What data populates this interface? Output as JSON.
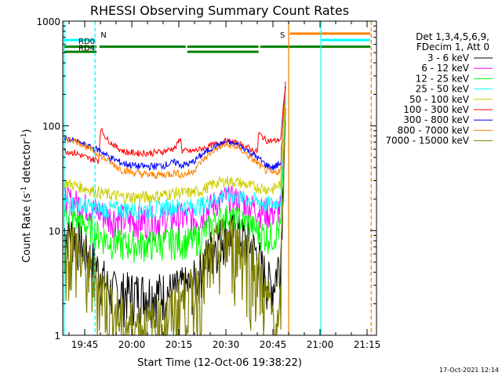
{
  "chart_data": {
    "type": "line",
    "title": "RHESSI Observing Summary Count Rates",
    "xlabel": "Start Time (12-Oct-06 19:38:22)",
    "ylabel_main": "Count Rate (s",
    "ylabel_sup1": "-1",
    "ylabel_mid": " detector",
    "ylabel_sup2": "-1",
    "ylabel_end": ")",
    "y_scale": "log",
    "ylim": [
      1,
      1000
    ],
    "y_ticks": [
      {
        "value": 1,
        "label": "1"
      },
      {
        "value": 10,
        "label": "10"
      },
      {
        "value": 100,
        "label": "100"
      },
      {
        "value": 1000,
        "label": "1000"
      }
    ],
    "x_range_min": [
      1178,
      1278
    ],
    "x_ticks": [
      {
        "value": 1185,
        "label": "19:45"
      },
      {
        "value": 1200,
        "label": "20:00"
      },
      {
        "value": 1215,
        "label": "20:15"
      },
      {
        "value": 1230,
        "label": "20:30"
      },
      {
        "value": 1245,
        "label": "20:45"
      },
      {
        "value": 1260,
        "label": "21:00"
      },
      {
        "value": 1275,
        "label": "21:15"
      }
    ],
    "legend_title": [
      "Det 1,3,4,5,6,9,",
      "FDecim 1, Att 0"
    ],
    "legend_position": "right",
    "series": [
      {
        "name": "3 - 6 keV",
        "color": "#000000",
        "points": [
          [
            1178.4,
            10
          ],
          [
            1182,
            9
          ],
          [
            1186,
            6
          ],
          [
            1190,
            4
          ],
          [
            1193,
            2.7
          ],
          [
            1197,
            2.6
          ],
          [
            1202,
            2.6
          ],
          [
            1206,
            2.6
          ],
          [
            1210,
            2.6
          ],
          [
            1214,
            2.7
          ],
          [
            1216,
            2.9
          ],
          [
            1219,
            3
          ],
          [
            1222,
            4.5
          ],
          [
            1226,
            7.5
          ],
          [
            1230,
            10
          ],
          [
            1234,
            9.5
          ],
          [
            1237,
            8
          ],
          [
            1240,
            6
          ],
          [
            1243,
            3.5
          ],
          [
            1245,
            3
          ],
          [
            1247.5,
            6
          ],
          [
            1248.3,
            30
          ],
          [
            1249,
            150
          ]
        ]
      },
      {
        "name": "6 - 12 keV",
        "color": "#ff00ff",
        "points": [
          [
            1178.4,
            21
          ],
          [
            1182,
            19
          ],
          [
            1186,
            17
          ],
          [
            1190,
            15
          ],
          [
            1193,
            13.5
          ],
          [
            1197,
            13
          ],
          [
            1202,
            12.5
          ],
          [
            1206,
            12.5
          ],
          [
            1210,
            13
          ],
          [
            1214,
            13.5
          ],
          [
            1216,
            13.5
          ],
          [
            1219,
            13
          ],
          [
            1222,
            14
          ],
          [
            1226,
            18
          ],
          [
            1230,
            21
          ],
          [
            1234,
            20
          ],
          [
            1237,
            18
          ],
          [
            1240,
            16
          ],
          [
            1243,
            15
          ],
          [
            1245,
            15
          ],
          [
            1247.5,
            17
          ],
          [
            1248.3,
            50
          ],
          [
            1249,
            200
          ]
        ]
      },
      {
        "name": "12 - 25 keV",
        "color": "#00ff00",
        "points": [
          [
            1178.4,
            15
          ],
          [
            1182,
            13
          ],
          [
            1186,
            11
          ],
          [
            1190,
            9
          ],
          [
            1193,
            8
          ],
          [
            1197,
            7.5
          ],
          [
            1202,
            7.5
          ],
          [
            1206,
            7.5
          ],
          [
            1210,
            7.8
          ],
          [
            1214,
            8
          ],
          [
            1216,
            8
          ],
          [
            1219,
            8
          ],
          [
            1222,
            9
          ],
          [
            1226,
            12
          ],
          [
            1230,
            14
          ],
          [
            1234,
            13
          ],
          [
            1237,
            12
          ],
          [
            1240,
            10
          ],
          [
            1243,
            9
          ],
          [
            1245,
            9
          ],
          [
            1247.5,
            11
          ],
          [
            1248.3,
            40
          ],
          [
            1249,
            170
          ]
        ]
      },
      {
        "name": "25 - 50 keV",
        "color": "#00ffff",
        "points": [
          [
            1178.4,
            19
          ],
          [
            1182,
            18
          ],
          [
            1186,
            17
          ],
          [
            1190,
            16
          ],
          [
            1193,
            16
          ],
          [
            1197,
            16
          ],
          [
            1202,
            16
          ],
          [
            1206,
            16
          ],
          [
            1210,
            16.5
          ],
          [
            1214,
            17
          ],
          [
            1216,
            17
          ],
          [
            1219,
            17
          ],
          [
            1222,
            17.5
          ],
          [
            1226,
            20
          ],
          [
            1230,
            22
          ],
          [
            1234,
            21
          ],
          [
            1237,
            20
          ],
          [
            1240,
            19
          ],
          [
            1243,
            18
          ],
          [
            1245,
            18
          ],
          [
            1247.5,
            20
          ],
          [
            1248.3,
            60
          ],
          [
            1249,
            200
          ]
        ]
      },
      {
        "name": "50 - 100 keV",
        "color": "#cccc00",
        "points": [
          [
            1178.4,
            29
          ],
          [
            1182,
            27
          ],
          [
            1186,
            25
          ],
          [
            1190,
            23
          ],
          [
            1193,
            22
          ],
          [
            1197,
            21
          ],
          [
            1202,
            21
          ],
          [
            1206,
            21
          ],
          [
            1210,
            22
          ],
          [
            1214,
            23
          ],
          [
            1216,
            23
          ],
          [
            1219,
            23
          ],
          [
            1222,
            24
          ],
          [
            1226,
            28
          ],
          [
            1230,
            30
          ],
          [
            1234,
            29
          ],
          [
            1237,
            27
          ],
          [
            1240,
            26
          ],
          [
            1243,
            25
          ],
          [
            1245,
            25
          ],
          [
            1247.5,
            28
          ],
          [
            1248.3,
            70
          ],
          [
            1249,
            210
          ]
        ]
      },
      {
        "name": "100 - 300 keV",
        "color": "#ff0000",
        "points": [
          [
            1178.4,
            58
          ],
          [
            1182,
            55
          ],
          [
            1186,
            49
          ],
          [
            1189.5,
            47
          ],
          [
            1190,
            95
          ],
          [
            1192,
            75
          ],
          [
            1195,
            63
          ],
          [
            1198,
            56
          ],
          [
            1202,
            55
          ],
          [
            1206,
            55
          ],
          [
            1210,
            57
          ],
          [
            1214,
            62
          ],
          [
            1215.5,
            78
          ],
          [
            1216,
            58
          ],
          [
            1219,
            57
          ],
          [
            1222,
            60
          ],
          [
            1226,
            66
          ],
          [
            1230,
            72
          ],
          [
            1234,
            68
          ],
          [
            1237,
            62
          ],
          [
            1240,
            56
          ],
          [
            1240.5,
            85
          ],
          [
            1243,
            72
          ],
          [
            1246,
            72
          ],
          [
            1247.5,
            75
          ],
          [
            1248.3,
            150
          ],
          [
            1249,
            260
          ]
        ]
      },
      {
        "name": "300 - 800 keV",
        "color": "#0000ff",
        "points": [
          [
            1178.4,
            76
          ],
          [
            1182,
            72
          ],
          [
            1186,
            64
          ],
          [
            1190,
            58
          ],
          [
            1193,
            50
          ],
          [
            1197,
            44
          ],
          [
            1202,
            41
          ],
          [
            1206,
            41
          ],
          [
            1210,
            42
          ],
          [
            1214,
            45
          ],
          [
            1216,
            42
          ],
          [
            1219,
            44
          ],
          [
            1222,
            52
          ],
          [
            1226,
            63
          ],
          [
            1230,
            70
          ],
          [
            1234,
            66
          ],
          [
            1237,
            58
          ],
          [
            1240,
            50
          ],
          [
            1243,
            42
          ],
          [
            1245,
            40
          ],
          [
            1247.5,
            44
          ],
          [
            1248.3,
            120
          ],
          [
            1249,
            230
          ]
        ]
      },
      {
        "name": "800 - 7000 keV",
        "color": "#ff8000",
        "points": [
          [
            1178.4,
            77
          ],
          [
            1182,
            72
          ],
          [
            1186,
            62
          ],
          [
            1190,
            52
          ],
          [
            1193,
            45
          ],
          [
            1197,
            38
          ],
          [
            1202,
            35
          ],
          [
            1206,
            34
          ],
          [
            1210,
            34
          ],
          [
            1214,
            36
          ],
          [
            1216,
            34
          ],
          [
            1219,
            36
          ],
          [
            1222,
            45
          ],
          [
            1226,
            58
          ],
          [
            1230,
            66
          ],
          [
            1234,
            62
          ],
          [
            1237,
            52
          ],
          [
            1240,
            44
          ],
          [
            1243,
            37
          ],
          [
            1245,
            35
          ],
          [
            1247.5,
            38
          ],
          [
            1248.3,
            110
          ],
          [
            1249,
            220
          ]
        ]
      },
      {
        "name": "7000 - 15000 keV",
        "color": "#808000",
        "points": [
          [
            1178.4,
            8
          ],
          [
            1182,
            7
          ],
          [
            1186,
            4
          ],
          [
            1190,
            3
          ],
          [
            1193,
            2
          ],
          [
            1197,
            1.3
          ],
          [
            1202,
            1.2
          ],
          [
            1206,
            1.2
          ],
          [
            1210,
            1.3
          ],
          [
            1214,
            1.8
          ],
          [
            1216,
            2.2
          ],
          [
            1219,
            2.4
          ],
          [
            1222,
            3.2
          ],
          [
            1226,
            6
          ],
          [
            1230,
            8
          ],
          [
            1234,
            7.5
          ],
          [
            1237,
            6
          ],
          [
            1240,
            4
          ],
          [
            1243,
            2.2
          ],
          [
            1245,
            1.5
          ],
          [
            1247,
            1
          ],
          [
            1247.5,
            3
          ],
          [
            1248.3,
            25
          ],
          [
            1249,
            130
          ]
        ]
      }
    ],
    "flag_bars": [
      {
        "label": "RD0",
        "color": "#00ffff",
        "y": 660,
        "segments": [
          [
            1178.4,
            1188.3
          ],
          [
            1260.3,
            1276
          ]
        ]
      },
      {
        "label": "RD4",
        "color": "#008000",
        "y": 570,
        "segments": [
          [
            1178.4,
            1188.8
          ],
          [
            1189.7,
            1217.2
          ],
          [
            1217.7,
            1240.4
          ],
          [
            1240.9,
            1276
          ]
        ]
      },
      {
        "label": "",
        "color": "#008000",
        "y": 510,
        "segments": [
          [
            1178.4,
            1188.8
          ],
          [
            1217.7,
            1240.4
          ]
        ]
      },
      {
        "label": "",
        "color": "#ff8000",
        "y": 760,
        "segments": [
          [
            1250.4,
            1276
          ]
        ]
      }
    ],
    "vlines": [
      {
        "x": 1178.4,
        "color": "#00ffff",
        "dashed": false
      },
      {
        "x": 1188.3,
        "color": "#00ffff",
        "dashed": true,
        "label": "N"
      },
      {
        "x": 1250.0,
        "color": "#ff8000",
        "dashed": false,
        "label": "S"
      },
      {
        "x": 1260.3,
        "color": "#00ffff",
        "dashed": false
      },
      {
        "x": 1276.3,
        "color": "#ff8000",
        "dashed": true
      }
    ]
  },
  "timestamp": "17-Oct-2021 12:14"
}
